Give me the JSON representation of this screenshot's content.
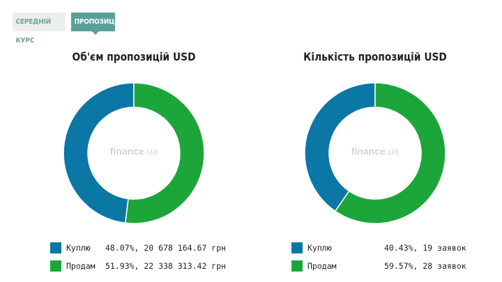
{
  "tabs": [
    {
      "label": "СЕРЕДНІЙ КУРС",
      "active": false
    },
    {
      "label": "ПРОПОЗИЦІЇ",
      "active": true
    }
  ],
  "watermark": {
    "brand": "finance",
    "domain": ".ua"
  },
  "colors": {
    "buy": "#0b77a5",
    "sell": "#1ca63a"
  },
  "chart_data": [
    {
      "type": "pie",
      "title": "Об'єм пропозицій USD",
      "donut": true,
      "categories": [
        "Куплю",
        "Продам"
      ],
      "values": [
        48.07,
        51.93
      ],
      "legend": [
        {
          "label": "Куплю",
          "value": "48.07%, 20 678 164.67 грн"
        },
        {
          "label": "Продам",
          "value": "51.93%, 22 338 313.42 грн"
        }
      ]
    },
    {
      "type": "pie",
      "title": "Кількість пропозицій USD",
      "donut": true,
      "categories": [
        "Куплю",
        "Продам"
      ],
      "values": [
        40.43,
        59.57
      ],
      "legend": [
        {
          "label": "Куплю",
          "value": "40.43%, 19 заявок"
        },
        {
          "label": "Продам",
          "value": "59.57%, 28 заявок"
        }
      ]
    }
  ]
}
